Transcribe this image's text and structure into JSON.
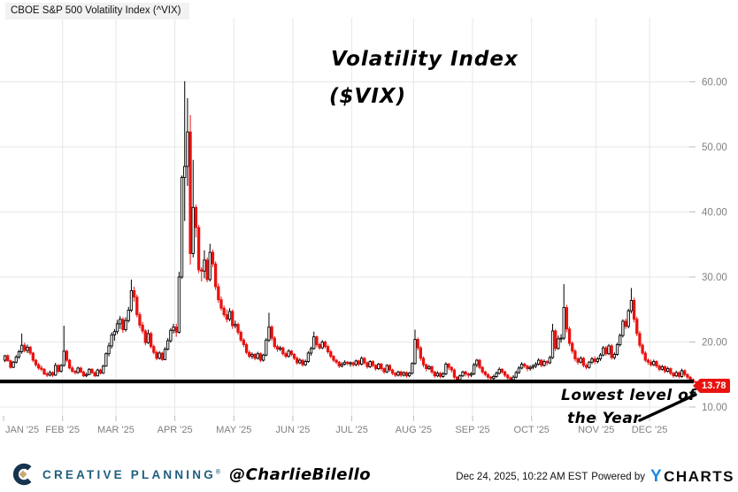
{
  "header": {
    "title": "CBOE S&P 500 Volatility Index (^VIX)"
  },
  "annotations": {
    "chart_label_line1": "Volatility Index",
    "chart_label_line2": "($VIX)",
    "callout_line1": "Lowest level of",
    "callout_line2": "the Year",
    "price_badge": "13.78"
  },
  "footer": {
    "brand": "CREATIVE PLANNING",
    "brand_mark": "®",
    "handle": "@CharlieBilello",
    "timestamp": "Dec 24, 2025, 10:22 AM EST",
    "powered_by": "Powered by",
    "ycharts_y": "Y",
    "ycharts_rest": "CHARTS"
  },
  "chart_data": {
    "type": "candlestick",
    "title": "CBOE S&P 500 Volatility Index (^VIX)",
    "ylabel": "",
    "xlabel": "",
    "ylim": [
      8.5,
      66
    ],
    "grid": true,
    "legend_position": "none",
    "y_ticks": [
      10,
      20,
      30,
      40,
      50,
      60
    ],
    "y_tick_labels": [
      "10.00",
      "20.00",
      "30.00",
      "40.00",
      "50.00",
      "60.00"
    ],
    "support_line_value": 13.95,
    "last_price": 13.78,
    "colors": {
      "up": "#000000",
      "down": "#e81310",
      "badge": "#e81310",
      "grid": "#e7e7e7",
      "axis_text": "#808080"
    },
    "months": [
      {
        "label": "JAN '25",
        "start": 0
      },
      {
        "label": "FEB '25",
        "start": 21
      },
      {
        "label": "MAR '25",
        "start": 40
      },
      {
        "label": "APR '25",
        "start": 61
      },
      {
        "label": "MAY '25",
        "start": 82
      },
      {
        "label": "JUN '25",
        "start": 103
      },
      {
        "label": "JUL '25",
        "start": 124
      },
      {
        "label": "AUG '25",
        "start": 146
      },
      {
        "label": "SEP '25",
        "start": 167
      },
      {
        "label": "OCT '25",
        "start": 188
      },
      {
        "label": "NOV '25",
        "start": 211
      },
      {
        "label": "DEC '25",
        "start": 230
      }
    ],
    "ohlc": [
      [
        17.2,
        18.0,
        16.9,
        17.9
      ],
      [
        17.9,
        18.1,
        17.0,
        17.1
      ],
      [
        17.1,
        17.3,
        15.9,
        16.1
      ],
      [
        16.1,
        17.1,
        16.0,
        16.9
      ],
      [
        16.9,
        18.0,
        16.7,
        17.7
      ],
      [
        17.7,
        18.8,
        17.4,
        18.5
      ],
      [
        18.5,
        21.3,
        18.2,
        19.5
      ],
      [
        19.5,
        19.9,
        18.4,
        18.7
      ],
      [
        18.7,
        19.6,
        18.3,
        19.2
      ],
      [
        19.2,
        19.4,
        18.0,
        18.3
      ],
      [
        18.3,
        18.5,
        16.9,
        17.2
      ],
      [
        17.2,
        17.4,
        16.2,
        16.5
      ],
      [
        16.5,
        16.8,
        15.7,
        16.0
      ],
      [
        16.0,
        16.4,
        15.5,
        15.8
      ],
      [
        15.8,
        16.0,
        14.9,
        15.1
      ],
      [
        15.1,
        15.4,
        14.6,
        14.9
      ],
      [
        14.9,
        15.6,
        14.7,
        15.3
      ],
      [
        15.3,
        15.5,
        14.6,
        14.9
      ],
      [
        14.9,
        16.8,
        14.8,
        16.4
      ],
      [
        16.4,
        16.6,
        15.2,
        15.5
      ],
      [
        15.5,
        16.6,
        15.3,
        16.4
      ],
      [
        16.4,
        22.5,
        16.2,
        18.6
      ],
      [
        18.6,
        18.8,
        16.9,
        17.2
      ],
      [
        17.2,
        17.4,
        15.8,
        16.0
      ],
      [
        16.0,
        16.3,
        15.3,
        15.5
      ],
      [
        15.5,
        15.7,
        15.0,
        15.3
      ],
      [
        15.3,
        16.2,
        15.1,
        16.0
      ],
      [
        16.0,
        16.2,
        15.2,
        15.4
      ],
      [
        15.4,
        15.6,
        14.6,
        14.8
      ],
      [
        14.8,
        15.3,
        14.6,
        15.0
      ],
      [
        15.0,
        16.0,
        14.9,
        15.8
      ],
      [
        15.8,
        16.0,
        15.1,
        15.3
      ],
      [
        15.3,
        15.5,
        14.6,
        14.8
      ],
      [
        14.8,
        15.9,
        14.7,
        15.7
      ],
      [
        15.7,
        15.9,
        15.0,
        15.2
      ],
      [
        15.2,
        16.5,
        15.1,
        16.3
      ],
      [
        16.3,
        18.4,
        16.2,
        18.2
      ],
      [
        18.2,
        19.9,
        17.8,
        19.4
      ],
      [
        19.4,
        21.5,
        19.0,
        21.1
      ],
      [
        21.1,
        22.0,
        20.2,
        21.6
      ],
      [
        21.6,
        23.4,
        21.2,
        22.8
      ],
      [
        22.8,
        24.0,
        22.0,
        23.5
      ],
      [
        23.5,
        23.8,
        21.4,
        21.9
      ],
      [
        21.9,
        23.8,
        21.6,
        23.3
      ],
      [
        23.3,
        25.4,
        23.0,
        24.9
      ],
      [
        24.9,
        29.6,
        24.6,
        27.9
      ],
      [
        27.9,
        28.5,
        26.2,
        26.9
      ],
      [
        26.9,
        27.3,
        23.8,
        24.2
      ],
      [
        24.2,
        24.6,
        22.1,
        22.6
      ],
      [
        22.6,
        23.1,
        21.3,
        21.7
      ],
      [
        21.7,
        22.0,
        19.5,
        19.9
      ],
      [
        19.9,
        21.9,
        19.7,
        21.3
      ],
      [
        21.3,
        21.6,
        19.0,
        19.3
      ],
      [
        19.3,
        19.6,
        18.1,
        18.4
      ],
      [
        18.4,
        18.7,
        17.2,
        17.5
      ],
      [
        17.5,
        18.6,
        17.3,
        18.3
      ],
      [
        18.3,
        18.5,
        17.1,
        17.3
      ],
      [
        17.3,
        19.2,
        17.2,
        18.9
      ],
      [
        18.9,
        20.6,
        18.7,
        20.2
      ],
      [
        20.2,
        22.1,
        19.9,
        21.8
      ],
      [
        21.8,
        22.8,
        21.3,
        22.3
      ],
      [
        22.3,
        22.8,
        20.8,
        21.5
      ],
      [
        21.5,
        30.8,
        21.3,
        30.0
      ],
      [
        30.0,
        45.6,
        29.7,
        45.3
      ],
      [
        45.3,
        60.1,
        38.6,
        47.0
      ],
      [
        47.0,
        57.5,
        44.0,
        52.3
      ],
      [
        52.3,
        54.9,
        31.9,
        33.6
      ],
      [
        33.6,
        48.0,
        33.0,
        40.7
      ],
      [
        40.7,
        41.1,
        36.1,
        37.6
      ],
      [
        37.6,
        38.0,
        30.6,
        31.1
      ],
      [
        31.1,
        31.5,
        29.3,
        30.9
      ],
      [
        30.9,
        34.1,
        29.8,
        32.6
      ],
      [
        32.6,
        33.0,
        29.2,
        29.6
      ],
      [
        29.6,
        35.1,
        29.3,
        33.8
      ],
      [
        33.8,
        34.2,
        31.5,
        32.0
      ],
      [
        32.0,
        32.4,
        28.0,
        28.5
      ],
      [
        28.5,
        29.0,
        26.0,
        26.5
      ],
      [
        26.5,
        27.0,
        24.8,
        25.2
      ],
      [
        25.2,
        25.6,
        23.8,
        24.2
      ],
      [
        24.2,
        25.0,
        23.0,
        23.5
      ],
      [
        23.5,
        25.2,
        23.2,
        24.7
      ],
      [
        24.7,
        25.0,
        22.0,
        22.5
      ],
      [
        22.5,
        23.3,
        22.1,
        22.7
      ],
      [
        22.7,
        23.0,
        21.1,
        21.5
      ],
      [
        21.5,
        21.8,
        20.0,
        20.3
      ],
      [
        20.3,
        20.6,
        19.2,
        19.6
      ],
      [
        19.6,
        19.9,
        18.1,
        18.4
      ],
      [
        18.4,
        18.7,
        17.5,
        17.8
      ],
      [
        17.8,
        18.4,
        17.4,
        18.1
      ],
      [
        18.1,
        18.3,
        17.2,
        17.5
      ],
      [
        17.5,
        18.5,
        17.3,
        18.2
      ],
      [
        18.2,
        18.4,
        16.9,
        17.2
      ],
      [
        17.2,
        18.2,
        17.0,
        18.0
      ],
      [
        18.0,
        20.6,
        17.8,
        20.3
      ],
      [
        20.3,
        24.5,
        20.0,
        22.3
      ],
      [
        22.3,
        22.6,
        20.2,
        20.6
      ],
      [
        20.6,
        20.9,
        19.0,
        19.3
      ],
      [
        19.3,
        19.6,
        18.5,
        18.9
      ],
      [
        18.9,
        19.4,
        18.6,
        19.1
      ],
      [
        19.1,
        19.3,
        17.9,
        18.2
      ],
      [
        18.2,
        18.5,
        17.5,
        17.8
      ],
      [
        17.8,
        18.9,
        17.6,
        18.6
      ],
      [
        18.6,
        18.8,
        17.8,
        18.1
      ],
      [
        18.1,
        18.3,
        17.2,
        17.5
      ],
      [
        17.5,
        17.8,
        16.5,
        16.8
      ],
      [
        16.8,
        17.5,
        16.6,
        17.2
      ],
      [
        17.2,
        17.4,
        16.2,
        16.5
      ],
      [
        16.5,
        17.3,
        16.3,
        17.0
      ],
      [
        17.0,
        18.6,
        16.8,
        18.3
      ],
      [
        18.3,
        19.3,
        17.9,
        19.0
      ],
      [
        19.0,
        21.6,
        18.8,
        20.8
      ],
      [
        20.8,
        21.0,
        19.2,
        19.6
      ],
      [
        19.6,
        19.9,
        18.8,
        19.1
      ],
      [
        19.1,
        20.3,
        18.9,
        20.0
      ],
      [
        20.0,
        20.2,
        19.0,
        19.3
      ],
      [
        19.3,
        19.6,
        18.2,
        18.5
      ],
      [
        18.5,
        18.8,
        17.5,
        17.8
      ],
      [
        17.8,
        18.0,
        16.9,
        17.2
      ],
      [
        17.2,
        17.4,
        16.6,
        16.9
      ],
      [
        16.9,
        17.1,
        16.0,
        16.3
      ],
      [
        16.3,
        16.9,
        16.1,
        16.6
      ],
      [
        16.6,
        17.2,
        16.4,
        16.9
      ],
      [
        16.9,
        17.1,
        16.4,
        16.7
      ],
      [
        16.7,
        17.0,
        16.2,
        16.8
      ],
      [
        16.8,
        17.0,
        16.2,
        16.5
      ],
      [
        16.5,
        17.3,
        16.3,
        17.1
      ],
      [
        17.1,
        17.3,
        16.3,
        16.6
      ],
      [
        16.6,
        17.8,
        16.4,
        17.5
      ],
      [
        17.5,
        17.7,
        16.5,
        16.8
      ],
      [
        16.8,
        17.0,
        15.9,
        16.2
      ],
      [
        16.2,
        17.2,
        16.0,
        17.0
      ],
      [
        17.0,
        17.2,
        16.1,
        16.4
      ],
      [
        16.4,
        16.6,
        15.6,
        15.9
      ],
      [
        15.9,
        16.8,
        15.7,
        16.6
      ],
      [
        16.6,
        16.8,
        15.6,
        15.9
      ],
      [
        15.9,
        16.1,
        15.1,
        15.4
      ],
      [
        15.4,
        16.6,
        15.2,
        16.4
      ],
      [
        16.4,
        16.6,
        15.4,
        15.7
      ],
      [
        15.7,
        15.9,
        14.9,
        15.2
      ],
      [
        15.2,
        15.4,
        14.6,
        14.9
      ],
      [
        14.9,
        15.6,
        14.7,
        15.4
      ],
      [
        15.4,
        15.6,
        14.6,
        14.9
      ],
      [
        14.9,
        15.5,
        14.7,
        15.3
      ],
      [
        15.3,
        15.5,
        14.5,
        14.8
      ],
      [
        14.8,
        15.4,
        14.6,
        15.2
      ],
      [
        15.2,
        16.9,
        15.0,
        16.7
      ],
      [
        16.7,
        21.9,
        16.5,
        20.4
      ],
      [
        20.4,
        20.7,
        18.7,
        19.1
      ],
      [
        19.1,
        19.4,
        17.1,
        17.5
      ],
      [
        17.5,
        17.8,
        16.1,
        16.5
      ],
      [
        16.5,
        16.7,
        15.5,
        15.9
      ],
      [
        15.9,
        16.5,
        15.7,
        16.2
      ],
      [
        16.2,
        16.4,
        15.1,
        15.4
      ],
      [
        15.4,
        15.6,
        14.5,
        14.8
      ],
      [
        14.8,
        15.5,
        14.6,
        15.2
      ],
      [
        15.2,
        15.4,
        14.4,
        14.7
      ],
      [
        14.7,
        15.4,
        14.5,
        15.1
      ],
      [
        15.1,
        16.9,
        14.9,
        16.6
      ],
      [
        16.6,
        16.8,
        15.7,
        16.1
      ],
      [
        16.1,
        16.3,
        15.3,
        15.7
      ],
      [
        15.7,
        15.9,
        14.3,
        14.6
      ],
      [
        14.6,
        14.8,
        13.9,
        14.2
      ],
      [
        14.2,
        15.0,
        14.0,
        14.8
      ],
      [
        14.8,
        15.6,
        14.6,
        15.4
      ],
      [
        15.4,
        15.6,
        14.7,
        15.1
      ],
      [
        15.1,
        15.3,
        14.5,
        14.9
      ],
      [
        14.9,
        15.4,
        14.6,
        15.1
      ],
      [
        15.1,
        16.8,
        14.9,
        16.5
      ],
      [
        16.5,
        17.4,
        16.1,
        17.2
      ],
      [
        17.2,
        17.4,
        15.8,
        16.1
      ],
      [
        16.1,
        16.3,
        15.1,
        15.4
      ],
      [
        15.4,
        15.6,
        14.7,
        15.0
      ],
      [
        15.0,
        15.2,
        14.3,
        14.6
      ],
      [
        14.6,
        14.8,
        14.1,
        14.4
      ],
      [
        14.4,
        15.0,
        14.2,
        14.7
      ],
      [
        14.7,
        15.5,
        14.5,
        15.2
      ],
      [
        15.2,
        16.1,
        15.0,
        15.8
      ],
      [
        15.8,
        16.0,
        15.1,
        15.4
      ],
      [
        15.4,
        15.6,
        14.6,
        14.9
      ],
      [
        14.9,
        15.1,
        14.2,
        14.5
      ],
      [
        14.5,
        14.7,
        13.9,
        14.2
      ],
      [
        14.2,
        14.9,
        14.0,
        14.6
      ],
      [
        14.6,
        15.6,
        14.4,
        15.3
      ],
      [
        15.3,
        16.3,
        15.1,
        16.0
      ],
      [
        16.0,
        16.9,
        15.8,
        16.6
      ],
      [
        16.6,
        16.8,
        16.0,
        16.3
      ],
      [
        16.3,
        16.5,
        15.5,
        15.9
      ],
      [
        15.9,
        16.4,
        15.6,
        16.1
      ],
      [
        16.1,
        16.6,
        15.8,
        16.3
      ],
      [
        16.3,
        16.9,
        16.0,
        16.6
      ],
      [
        16.6,
        17.5,
        16.4,
        17.2
      ],
      [
        17.2,
        17.4,
        16.1,
        16.4
      ],
      [
        16.4,
        17.3,
        16.2,
        17.0
      ],
      [
        17.0,
        17.2,
        16.4,
        16.8
      ],
      [
        16.8,
        17.9,
        16.6,
        17.6
      ],
      [
        17.6,
        22.8,
        17.4,
        21.7
      ],
      [
        21.7,
        22.0,
        18.6,
        19.0
      ],
      [
        19.0,
        21.0,
        18.8,
        20.5
      ],
      [
        20.5,
        21.2,
        19.9,
        20.6
      ],
      [
        20.6,
        28.9,
        20.3,
        25.3
      ],
      [
        25.3,
        25.7,
        21.5,
        22.0
      ],
      [
        22.0,
        22.4,
        19.4,
        19.8
      ],
      [
        19.8,
        20.1,
        18.2,
        18.6
      ],
      [
        18.6,
        18.9,
        17.0,
        17.4
      ],
      [
        17.4,
        17.7,
        16.5,
        16.9
      ],
      [
        16.9,
        17.8,
        16.7,
        17.5
      ],
      [
        17.5,
        17.7,
        16.1,
        16.4
      ],
      [
        16.4,
        16.7,
        15.8,
        16.1
      ],
      [
        16.1,
        17.1,
        15.9,
        16.9
      ],
      [
        16.9,
        17.7,
        16.6,
        17.4
      ],
      [
        17.4,
        17.8,
        16.6,
        17.0
      ],
      [
        17.0,
        17.7,
        16.7,
        17.4
      ],
      [
        17.4,
        18.3,
        17.1,
        18.0
      ],
      [
        18.0,
        19.4,
        17.8,
        19.1
      ],
      [
        19.1,
        19.4,
        17.9,
        18.2
      ],
      [
        18.2,
        19.7,
        18.0,
        19.4
      ],
      [
        19.4,
        19.7,
        17.3,
        17.6
      ],
      [
        17.6,
        18.4,
        17.3,
        18.1
      ],
      [
        18.1,
        19.9,
        17.9,
        19.6
      ],
      [
        19.6,
        21.3,
        19.3,
        21.0
      ],
      [
        21.0,
        23.5,
        20.7,
        23.2
      ],
      [
        23.2,
        23.6,
        22.0,
        22.4
      ],
      [
        22.4,
        25.1,
        22.1,
        24.8
      ],
      [
        24.8,
        28.3,
        24.4,
        26.4
      ],
      [
        26.4,
        26.8,
        23.0,
        23.5
      ],
      [
        23.5,
        23.9,
        20.9,
        21.3
      ],
      [
        21.3,
        21.7,
        19.1,
        19.5
      ],
      [
        19.5,
        19.8,
        18.0,
        18.3
      ],
      [
        18.3,
        18.6,
        16.9,
        17.2
      ],
      [
        17.2,
        17.5,
        16.5,
        16.9
      ],
      [
        16.9,
        17.3,
        16.2,
        16.5
      ],
      [
        16.5,
        17.3,
        16.3,
        17.0
      ],
      [
        17.0,
        17.2,
        16.0,
        16.3
      ],
      [
        16.3,
        16.6,
        15.5,
        15.8
      ],
      [
        15.8,
        16.5,
        15.6,
        16.2
      ],
      [
        16.2,
        16.4,
        15.2,
        15.5
      ],
      [
        15.5,
        16.2,
        15.3,
        15.9
      ],
      [
        15.9,
        16.1,
        14.9,
        15.2
      ],
      [
        15.2,
        15.4,
        14.5,
        14.8
      ],
      [
        14.8,
        15.6,
        14.6,
        15.3
      ],
      [
        15.3,
        15.5,
        14.4,
        14.7
      ],
      [
        14.7,
        15.9,
        14.5,
        15.6
      ],
      [
        15.6,
        15.8,
        14.7,
        15.0
      ],
      [
        15.0,
        15.2,
        14.3,
        14.6
      ],
      [
        14.6,
        14.8,
        14.0,
        14.2
      ],
      [
        14.2,
        14.4,
        13.7,
        13.9
      ],
      [
        13.9,
        14.0,
        13.2,
        13.78
      ]
    ]
  }
}
